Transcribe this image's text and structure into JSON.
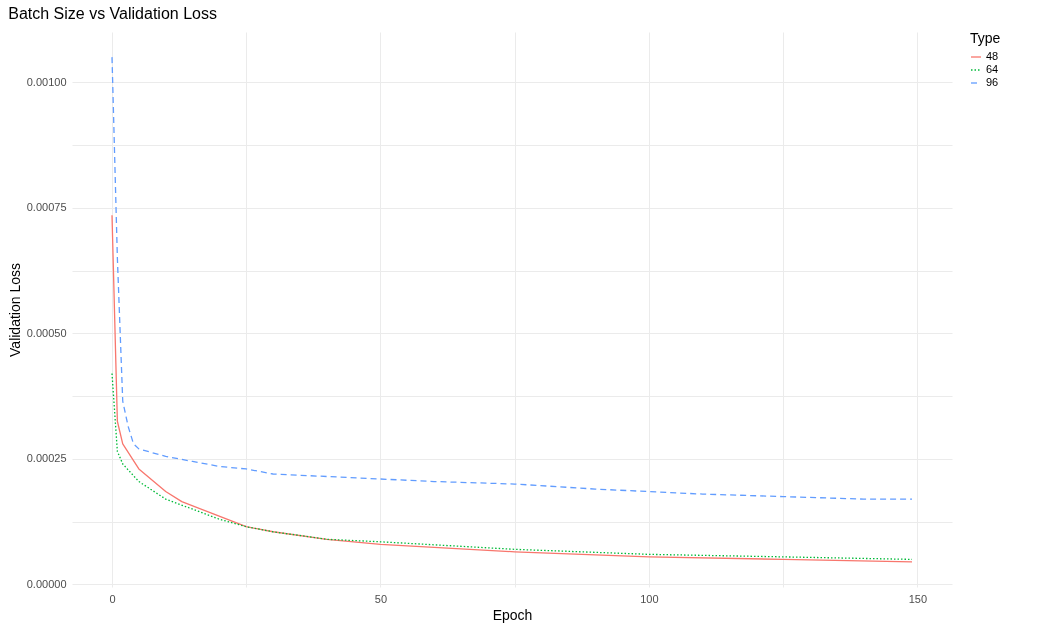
{
  "chart_data": {
    "type": "line",
    "title": "Batch Size vs Validation Loss",
    "xlabel": "Epoch",
    "ylabel": "Validation Loss",
    "legend_title": "Type",
    "legend": "right",
    "grid": true,
    "marker": "none",
    "xlim": [
      -7.45,
      156.45
    ],
    "xticks": [
      0,
      {
        "value": 25,
        "label": null
      },
      50,
      {
        "value": 75,
        "label": null
      },
      100,
      {
        "value": 125,
        "label": null
      },
      150
    ],
    "ylim": [
      -5e-06,
      0.0011
    ],
    "yticks": [
      {
        "value": 0,
        "label": "0.00000"
      },
      {
        "value": 0.000125,
        "label": null
      },
      {
        "value": 0.00025,
        "label": "0.00025"
      },
      {
        "value": 0.000375,
        "label": null
      },
      {
        "value": 0.0005,
        "label": "0.00050"
      },
      {
        "value": 0.000625,
        "label": null
      },
      {
        "value": 0.00075,
        "label": "0.00075"
      },
      {
        "value": 0.000875,
        "label": null
      },
      {
        "value": 0.001,
        "label": "0.00100"
      }
    ],
    "series": [
      {
        "name": "48",
        "color": "#f8766d",
        "line_style": "solid",
        "x": [
          0,
          1,
          2,
          5,
          10,
          13,
          19,
          25,
          30,
          40,
          50,
          75,
          100,
          125,
          149
        ],
        "values": [
          0.000735,
          0.000325,
          0.00028,
          0.00023,
          0.000185,
          0.000165,
          0.00014,
          0.000115,
          0.000105,
          9e-05,
          8e-05,
          6.5e-05,
          5.5e-05,
          5e-05,
          4.5e-05
        ]
      },
      {
        "name": "64",
        "color": "#00ba38",
        "line_style": "dotted",
        "x": [
          0,
          1,
          2,
          5,
          10,
          20,
          25,
          30,
          40,
          50,
          75,
          100,
          125,
          149
        ],
        "values": [
          0.00042,
          0.000265,
          0.00024,
          0.000205,
          0.00017,
          0.00013,
          0.000115,
          0.000105,
          9e-05,
          8.5e-05,
          7e-05,
          6e-05,
          5.5e-05,
          5e-05
        ]
      },
      {
        "name": "96",
        "color": "#619cff",
        "line_style": "dashed",
        "x": [
          0,
          1,
          2,
          3,
          4,
          5,
          10,
          15,
          20,
          25,
          30,
          40,
          50,
          60,
          75,
          90,
          100,
          110,
          125,
          140,
          149
        ],
        "values": [
          0.00105,
          0.00065,
          0.000365,
          0.000315,
          0.00028,
          0.00027,
          0.000255,
          0.000245,
          0.000235,
          0.00023,
          0.00022,
          0.000215,
          0.00021,
          0.000205,
          0.0002,
          0.00019,
          0.000185,
          0.00018,
          0.000175,
          0.00017,
          0.00017
        ]
      }
    ]
  }
}
